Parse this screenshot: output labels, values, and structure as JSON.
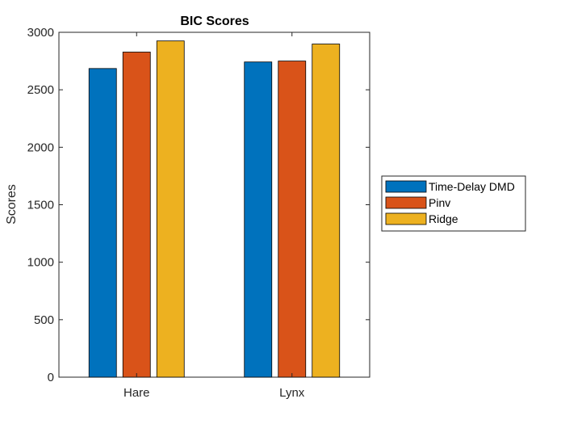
{
  "chart_data": {
    "type": "bar",
    "title": "BIC Scores",
    "xlabel": "",
    "ylabel": "Scores",
    "categories": [
      "Hare",
      "Lynx"
    ],
    "series": [
      {
        "name": "Time-Delay DMD",
        "values": [
          2685,
          2742
        ],
        "color": "#0072BD"
      },
      {
        "name": "Pinv",
        "values": [
          2828,
          2750
        ],
        "color": "#D95319"
      },
      {
        "name": "Ridge",
        "values": [
          2925,
          2898
        ],
        "color": "#EDB120"
      }
    ],
    "ylim": [
      0,
      3000
    ],
    "yticks": [
      0,
      500,
      1000,
      1500,
      2000,
      2500,
      3000
    ],
    "grid": false,
    "legend_placement": "outside-right"
  }
}
